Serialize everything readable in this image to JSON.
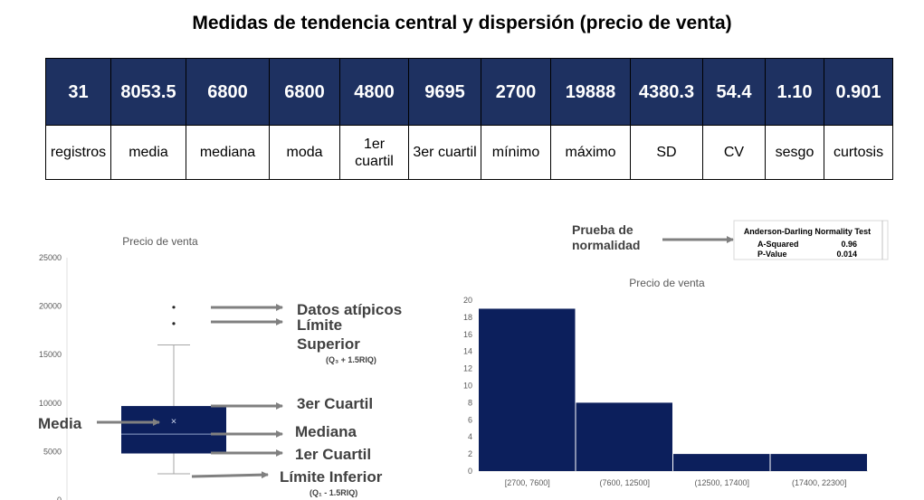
{
  "title": "Medidas de tendencia central y dispersión (precio de venta)",
  "stats": [
    {
      "value": "31",
      "label": "registros"
    },
    {
      "value": "8053.5",
      "label": "media"
    },
    {
      "value": "6800",
      "label": "mediana"
    },
    {
      "value": "6800",
      "label": "moda"
    },
    {
      "value": "4800",
      "label": "1er cuartil"
    },
    {
      "value": "9695",
      "label": "3er cuartil"
    },
    {
      "value": "2700",
      "label": "mínimo"
    },
    {
      "value": "19888",
      "label": "máximo"
    },
    {
      "value": "4380.3",
      "label": "SD"
    },
    {
      "value": "54.4",
      "label": "CV"
    },
    {
      "value": "1.10",
      "label": "sesgo"
    },
    {
      "value": "0.901",
      "label": "curtosis"
    }
  ],
  "annotations": {
    "datos_atipicos": "Datos atípicos",
    "limite_superior_1": "Límite",
    "limite_superior_2": "Superior",
    "limite_superior_formula": "(Q₃ + 1.5RIQ)",
    "tercer_cuartil": "3er Cuartil",
    "media": "Media",
    "mediana": "Mediana",
    "primer_cuartil": "1er Cuartil",
    "limite_inferior": "Límite Inferior",
    "limite_inferior_formula": "(Q₁ - 1.5RIQ)",
    "prueba_1": "Prueba de",
    "prueba_2": "normalidad"
  },
  "normality_test": {
    "title": "Anderson-Darling Normality Test",
    "rows": [
      {
        "label": "A-Squared",
        "value": "0.96"
      },
      {
        "label": "P-Value",
        "value": "0.014"
      }
    ]
  },
  "colors": {
    "navy": "#1e3161",
    "bar": "#0c1f5c",
    "arrow": "#808080",
    "annotation": "#404040"
  },
  "chart_data": [
    {
      "type": "box",
      "title": "Precio de venta",
      "ylim": [
        0,
        25000
      ],
      "yticks": [
        0,
        5000,
        10000,
        15000,
        20000,
        25000
      ],
      "whisker_low": 2700,
      "q1": 4800,
      "median": 6800,
      "q3": 9695,
      "mean": 8053.5,
      "whisker_high": 16000,
      "outliers": [
        18200,
        19888
      ]
    },
    {
      "type": "bar",
      "title": "Precio de venta",
      "categories": [
        "[2700, 7600]",
        "(7600, 12500]",
        "(12500, 17400]",
        "(17400, 22300]"
      ],
      "values": [
        19,
        8,
        2,
        2
      ],
      "ylim": [
        0,
        20
      ],
      "yticks": [
        0,
        2,
        4,
        6,
        8,
        10,
        12,
        14,
        16,
        18,
        20
      ]
    }
  ]
}
